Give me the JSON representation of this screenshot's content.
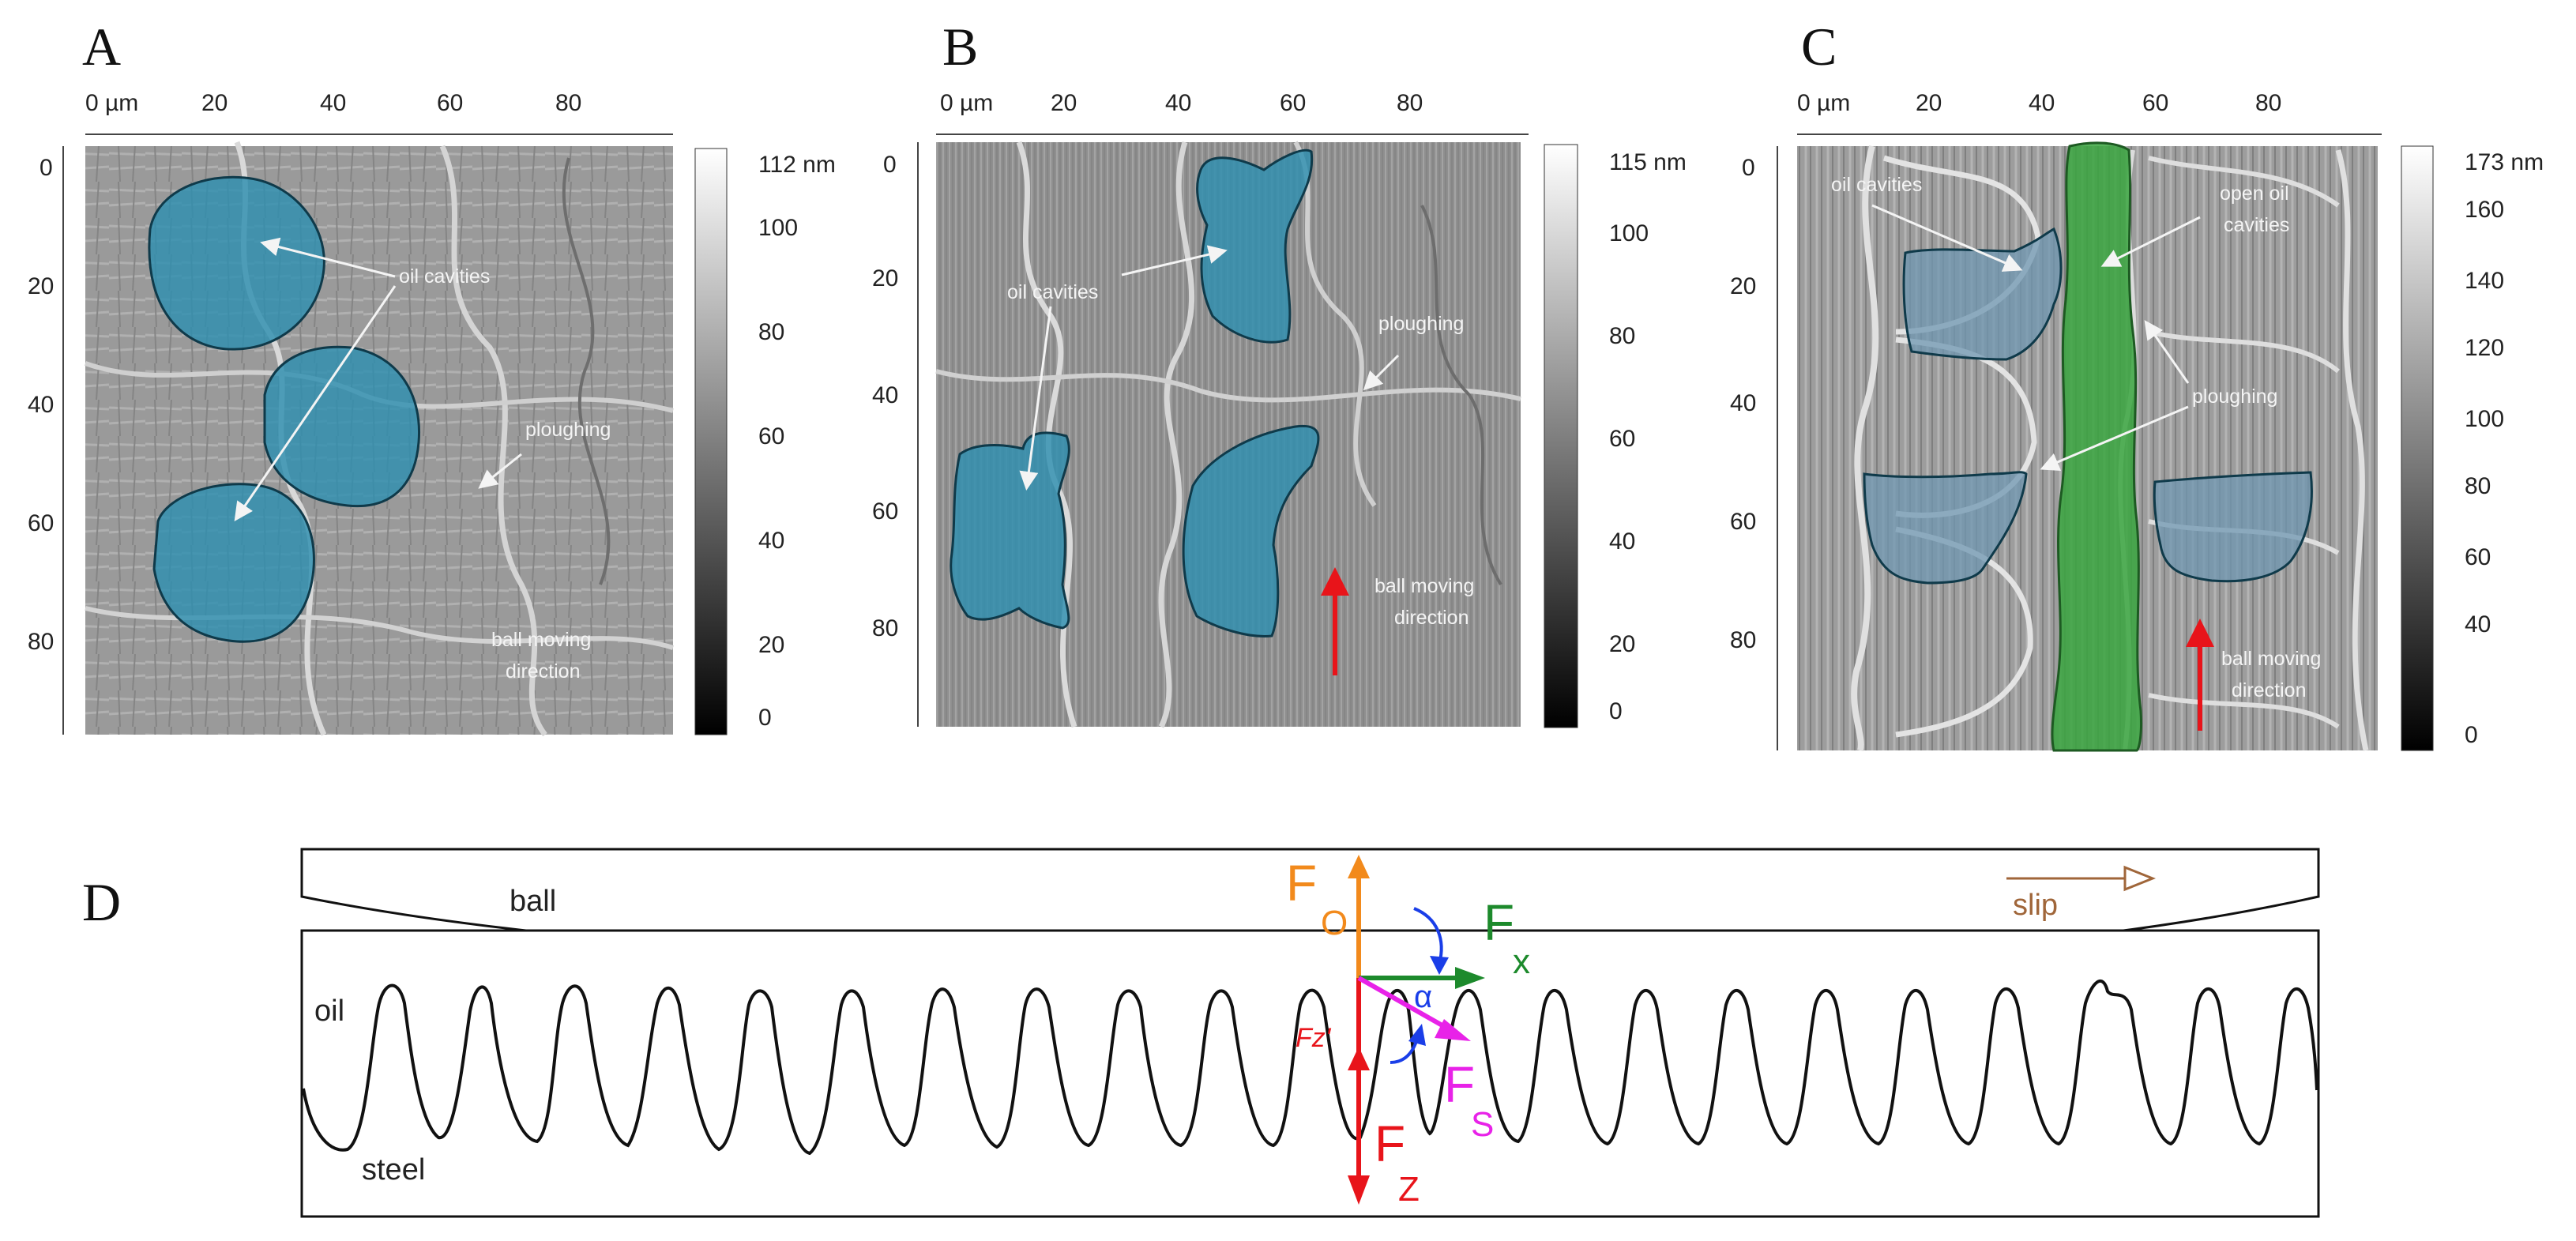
{
  "panels": [
    {
      "letter": "A",
      "x_ticks": [
        "0 µm",
        "20",
        "40",
        "60",
        "80"
      ],
      "y_ticks": [
        "0",
        "20",
        "40",
        "60",
        "80"
      ],
      "colorbar": {
        "max_label": "112 nm",
        "ticks": [
          "100",
          "80",
          "60",
          "40",
          "20",
          "0"
        ]
      },
      "annotations": {
        "oil_cavities": "oil cavities",
        "ploughing": "ploughing",
        "ball_moving_1": "ball moving",
        "ball_moving_2": "direction"
      }
    },
    {
      "letter": "B",
      "x_ticks": [
        "0 µm",
        "20",
        "40",
        "60",
        "80"
      ],
      "y_ticks": [
        "0",
        "20",
        "40",
        "60",
        "80"
      ],
      "colorbar": {
        "max_label": "115 nm",
        "ticks": [
          "100",
          "80",
          "60",
          "40",
          "20",
          "0"
        ]
      },
      "annotations": {
        "oil_cavities": "oil cavities",
        "ploughing": "ploughing",
        "ball_moving_1": "ball moving",
        "ball_moving_2": "direction"
      }
    },
    {
      "letter": "C",
      "x_ticks": [
        "0 µm",
        "20",
        "40",
        "60",
        "80"
      ],
      "y_ticks": [
        "0",
        "20",
        "40",
        "60",
        "80"
      ],
      "colorbar": {
        "max_label": "173 nm",
        "ticks": [
          "160",
          "140",
          "120",
          "100",
          "80",
          "60",
          "40",
          "0"
        ]
      },
      "annotations": {
        "oil_cavities": "oil cavities",
        "open_oil_1": "open oil",
        "open_oil_2": "cavities",
        "ploughing": "ploughing",
        "ball_moving_1": "ball moving",
        "ball_moving_2": "direction"
      }
    }
  ],
  "diagram": {
    "letter": "D",
    "ball_label": "ball",
    "oil_label": "oil",
    "steel_label": "steel",
    "slip_label": "slip",
    "forces": {
      "fo_main": "F",
      "fo_sub": "O",
      "fx_main": "F",
      "fx_sub": "x",
      "fs_main": "F",
      "fs_sub": "S",
      "fz_main": "F",
      "fz_sub": "Z",
      "fzp_label": "Fz'",
      "alpha": "α"
    }
  },
  "colors": {
    "oil_cavity_fill": "#2e8fb0",
    "open_channel_fill": "#3aa640",
    "arrow_red": "#e8141a",
    "force_orange": "#f28a1c",
    "force_green": "#1d8a2c",
    "force_magenta": "#e822e8",
    "force_blue": "#1a3ee8",
    "slip_brown": "#a0663a"
  }
}
